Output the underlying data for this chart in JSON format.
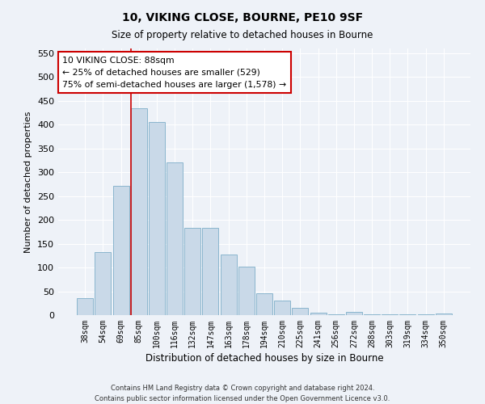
{
  "title": "10, VIKING CLOSE, BOURNE, PE10 9SF",
  "subtitle": "Size of property relative to detached houses in Bourne",
  "xlabel": "Distribution of detached houses by size in Bourne",
  "ylabel": "Number of detached properties",
  "categories": [
    "38sqm",
    "54sqm",
    "69sqm",
    "85sqm",
    "100sqm",
    "116sqm",
    "132sqm",
    "147sqm",
    "163sqm",
    "178sqm",
    "194sqm",
    "210sqm",
    "225sqm",
    "241sqm",
    "256sqm",
    "272sqm",
    "288sqm",
    "303sqm",
    "319sqm",
    "334sqm",
    "350sqm"
  ],
  "values": [
    35,
    133,
    272,
    435,
    405,
    320,
    183,
    183,
    127,
    102,
    45,
    30,
    16,
    5,
    2,
    7,
    2,
    1,
    2,
    1,
    3
  ],
  "bar_color": "#c9d9e8",
  "bar_edge_color": "#7daec8",
  "background_color": "#eef2f8",
  "grid_color": "#ffffff",
  "red_line_index": 3,
  "annotation_text": "10 VIKING CLOSE: 88sqm\n← 25% of detached houses are smaller (529)\n75% of semi-detached houses are larger (1,578) →",
  "annotation_box_color": "#ffffff",
  "annotation_box_edge": "#cc0000",
  "ylim": [
    0,
    560
  ],
  "yticks": [
    0,
    50,
    100,
    150,
    200,
    250,
    300,
    350,
    400,
    450,
    500,
    550
  ],
  "footer_line1": "Contains HM Land Registry data © Crown copyright and database right 2024.",
  "footer_line2": "Contains public sector information licensed under the Open Government Licence v3.0."
}
